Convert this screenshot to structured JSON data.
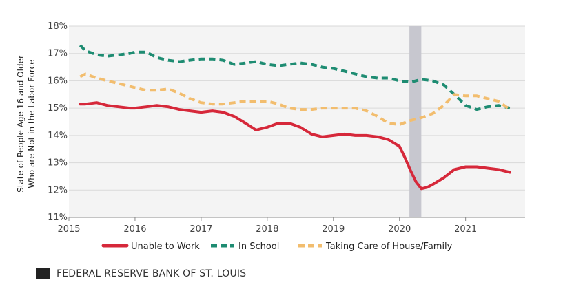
{
  "chart_data": {
    "type": "line",
    "title": "",
    "xlabel": "",
    "ylabel_lines": [
      "State of People Age 16 and Older",
      "Who are Not in the Labor Force"
    ],
    "xlim": [
      2015,
      2021.9
    ],
    "ylim": [
      11,
      18
    ],
    "x_ticks": [
      2015,
      2016,
      2017,
      2018,
      2019,
      2020,
      2021
    ],
    "x_tick_labels": [
      "2015",
      "2016",
      "2017",
      "2018",
      "2019",
      "2020",
      "2021"
    ],
    "y_ticks": [
      11,
      12,
      13,
      14,
      15,
      16,
      17,
      18
    ],
    "y_tick_labels": [
      "11%",
      "12%",
      "13%",
      "14%",
      "15%",
      "16%",
      "17%",
      "18%"
    ],
    "grid": "horizontal",
    "recession_band": {
      "start": 2020.15,
      "end": 2020.33,
      "color": "#c7c7cf"
    },
    "legend_position": "bottom",
    "series": [
      {
        "name": "Unable to Work",
        "color": "#d6283a",
        "style": "solid",
        "x": [
          2015.17,
          2015.25,
          2015.42,
          2015.58,
          2015.75,
          2015.92,
          2016.0,
          2016.17,
          2016.33,
          2016.5,
          2016.67,
          2016.83,
          2017.0,
          2017.17,
          2017.33,
          2017.5,
          2017.67,
          2017.83,
          2018.0,
          2018.17,
          2018.33,
          2018.5,
          2018.67,
          2018.83,
          2019.0,
          2019.17,
          2019.33,
          2019.5,
          2019.67,
          2019.83,
          2020.0,
          2020.08,
          2020.17,
          2020.25,
          2020.33,
          2020.42,
          2020.5,
          2020.67,
          2020.83,
          2021.0,
          2021.17,
          2021.33,
          2021.5,
          2021.67
        ],
        "values": [
          15.15,
          15.15,
          15.2,
          15.1,
          15.05,
          15.0,
          15.0,
          15.05,
          15.1,
          15.05,
          14.95,
          14.9,
          14.85,
          14.9,
          14.85,
          14.7,
          14.45,
          14.2,
          14.3,
          14.45,
          14.45,
          14.3,
          14.05,
          13.95,
          14.0,
          14.05,
          14.0,
          14.0,
          13.95,
          13.85,
          13.6,
          13.2,
          12.7,
          12.3,
          12.05,
          12.1,
          12.2,
          12.45,
          12.75,
          12.85,
          12.85,
          12.8,
          12.75,
          12.65
        ]
      },
      {
        "name": "In School",
        "color": "#1e8c72",
        "style": "dashed",
        "x": [
          2015.17,
          2015.25,
          2015.42,
          2015.58,
          2015.75,
          2015.92,
          2016.0,
          2016.17,
          2016.33,
          2016.5,
          2016.67,
          2016.83,
          2017.0,
          2017.17,
          2017.33,
          2017.5,
          2017.67,
          2017.83,
          2018.0,
          2018.17,
          2018.33,
          2018.5,
          2018.67,
          2018.83,
          2019.0,
          2019.17,
          2019.33,
          2019.5,
          2019.67,
          2019.83,
          2020.0,
          2020.17,
          2020.33,
          2020.5,
          2020.67,
          2020.83,
          2021.0,
          2021.17,
          2021.33,
          2021.5,
          2021.67
        ],
        "values": [
          17.3,
          17.1,
          16.95,
          16.9,
          16.95,
          17.0,
          17.05,
          17.05,
          16.85,
          16.75,
          16.7,
          16.75,
          16.8,
          16.8,
          16.75,
          16.6,
          16.65,
          16.7,
          16.6,
          16.55,
          16.6,
          16.65,
          16.6,
          16.5,
          16.45,
          16.35,
          16.25,
          16.15,
          16.1,
          16.1,
          16.0,
          15.95,
          16.05,
          16.0,
          15.85,
          15.5,
          15.1,
          14.95,
          15.05,
          15.1,
          15.0
        ]
      },
      {
        "name": "Taking Care of House/Family",
        "color": "#f2bd6e",
        "style": "dashed",
        "x": [
          2015.17,
          2015.25,
          2015.42,
          2015.58,
          2015.75,
          2015.92,
          2016.0,
          2016.17,
          2016.33,
          2016.5,
          2016.67,
          2016.83,
          2017.0,
          2017.17,
          2017.33,
          2017.5,
          2017.67,
          2017.83,
          2018.0,
          2018.17,
          2018.33,
          2018.5,
          2018.67,
          2018.83,
          2019.0,
          2019.17,
          2019.33,
          2019.5,
          2019.67,
          2019.83,
          2020.0,
          2020.17,
          2020.33,
          2020.5,
          2020.67,
          2020.83,
          2021.0,
          2021.17,
          2021.33,
          2021.5,
          2021.67
        ],
        "values": [
          16.15,
          16.25,
          16.1,
          16.0,
          15.9,
          15.8,
          15.75,
          15.65,
          15.65,
          15.7,
          15.55,
          15.35,
          15.2,
          15.15,
          15.15,
          15.2,
          15.25,
          15.25,
          15.25,
          15.15,
          15.0,
          14.95,
          14.95,
          15.0,
          15.0,
          15.0,
          15.0,
          14.9,
          14.7,
          14.45,
          14.4,
          14.55,
          14.65,
          14.8,
          15.1,
          15.5,
          15.45,
          15.45,
          15.35,
          15.25,
          14.95
        ]
      }
    ]
  },
  "source": {
    "label": "FEDERAL RESERVE BANK OF ST. LOUIS"
  }
}
